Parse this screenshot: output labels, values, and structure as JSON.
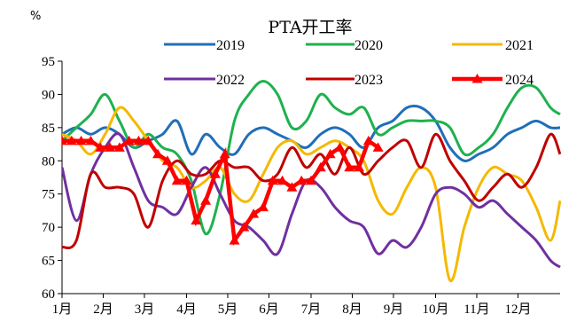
{
  "chart_data": {
    "type": "line",
    "title": "PTA开工率",
    "ylabel": "%",
    "xlabel": "",
    "ylim": [
      60,
      95
    ],
    "yticks": [
      60,
      65,
      70,
      75,
      80,
      85,
      90,
      95
    ],
    "x_range": [
      0,
      52
    ],
    "x_tick_labels": [
      "1月",
      "2月",
      "3月",
      "4月",
      "5月",
      "6月",
      "7月",
      "8月",
      "9月",
      "10月",
      "11月",
      "12月"
    ],
    "x_tick_positions": [
      0,
      4.3,
      8.6,
      13,
      17.3,
      21.6,
      26,
      30.3,
      34.6,
      39,
      43.3,
      47.6
    ],
    "legend": "top",
    "grid": false,
    "series": [
      {
        "name": "2019",
        "color": "#1f6fb8",
        "marker": false,
        "values": [
          [
            0,
            84
          ],
          [
            1.5,
            85
          ],
          [
            3,
            84
          ],
          [
            4.5,
            85
          ],
          [
            6,
            84
          ],
          [
            7.5,
            82
          ],
          [
            9,
            83
          ],
          [
            10.5,
            84
          ],
          [
            12,
            86
          ],
          [
            13.5,
            81
          ],
          [
            15,
            84
          ],
          [
            16.5,
            82
          ],
          [
            18,
            81
          ],
          [
            19.5,
            84
          ],
          [
            21,
            85
          ],
          [
            22.5,
            84
          ],
          [
            24,
            83
          ],
          [
            25.5,
            82
          ],
          [
            27,
            84
          ],
          [
            28.5,
            85
          ],
          [
            30,
            84
          ],
          [
            31.5,
            82
          ],
          [
            33,
            85
          ],
          [
            34.5,
            86
          ],
          [
            36,
            88
          ],
          [
            37.5,
            88
          ],
          [
            39,
            86
          ],
          [
            40.5,
            82
          ],
          [
            42,
            80
          ],
          [
            43.5,
            81
          ],
          [
            45,
            82
          ],
          [
            46.5,
            84
          ],
          [
            48,
            85
          ],
          [
            49.5,
            86
          ],
          [
            51,
            85
          ],
          [
            52,
            85
          ]
        ]
      },
      {
        "name": "2020",
        "color": "#1fb14f",
        "marker": false,
        "values": [
          [
            0,
            83
          ],
          [
            1.5,
            85
          ],
          [
            3,
            87
          ],
          [
            4.5,
            90
          ],
          [
            6,
            86
          ],
          [
            7.5,
            82
          ],
          [
            9,
            84
          ],
          [
            10.5,
            82
          ],
          [
            12,
            81
          ],
          [
            13.5,
            77
          ],
          [
            15,
            69
          ],
          [
            16.5,
            75
          ],
          [
            18,
            86
          ],
          [
            19.5,
            90
          ],
          [
            21,
            92
          ],
          [
            22.5,
            90
          ],
          [
            24,
            85
          ],
          [
            25.5,
            86
          ],
          [
            27,
            90
          ],
          [
            28.5,
            88
          ],
          [
            30,
            87
          ],
          [
            31.5,
            88
          ],
          [
            33,
            84
          ],
          [
            34.5,
            85
          ],
          [
            36,
            86
          ],
          [
            37.5,
            86
          ],
          [
            39,
            86
          ],
          [
            40.5,
            85
          ],
          [
            42,
            81
          ],
          [
            43.5,
            82
          ],
          [
            45,
            84
          ],
          [
            46.5,
            88
          ],
          [
            48,
            91
          ],
          [
            49.5,
            91
          ],
          [
            51,
            88
          ],
          [
            52,
            87
          ]
        ]
      },
      {
        "name": "2021",
        "color": "#f5b800",
        "marker": false,
        "values": [
          [
            0,
            84
          ],
          [
            1.5,
            83
          ],
          [
            3,
            81
          ],
          [
            4.5,
            84
          ],
          [
            6,
            88
          ],
          [
            7.5,
            86
          ],
          [
            9,
            83
          ],
          [
            10.5,
            80
          ],
          [
            12,
            79
          ],
          [
            13.5,
            76
          ],
          [
            15,
            77
          ],
          [
            16.5,
            79
          ],
          [
            18,
            75
          ],
          [
            19.5,
            74
          ],
          [
            21,
            78
          ],
          [
            22.5,
            82
          ],
          [
            24,
            83
          ],
          [
            25.5,
            81
          ],
          [
            27,
            82
          ],
          [
            28.5,
            83
          ],
          [
            30,
            82
          ],
          [
            31.5,
            80
          ],
          [
            33,
            74
          ],
          [
            34.5,
            72
          ],
          [
            36,
            76
          ],
          [
            37.5,
            79
          ],
          [
            39,
            76
          ],
          [
            40.5,
            62
          ],
          [
            42,
            70
          ],
          [
            43.5,
            76
          ],
          [
            45,
            79
          ],
          [
            46.5,
            78
          ],
          [
            48,
            77
          ],
          [
            49.5,
            73
          ],
          [
            51,
            68
          ],
          [
            52,
            74
          ]
        ]
      },
      {
        "name": "2022",
        "color": "#7030a0",
        "marker": false,
        "values": [
          [
            0,
            79
          ],
          [
            1.5,
            71
          ],
          [
            3,
            78
          ],
          [
            4.5,
            82
          ],
          [
            6,
            84
          ],
          [
            7.5,
            79
          ],
          [
            9,
            74
          ],
          [
            10.5,
            73
          ],
          [
            12,
            72
          ],
          [
            13.5,
            76
          ],
          [
            15,
            79
          ],
          [
            16.5,
            75
          ],
          [
            18,
            71
          ],
          [
            19.5,
            70
          ],
          [
            21,
            68
          ],
          [
            22.5,
            66
          ],
          [
            24,
            72
          ],
          [
            25.5,
            77
          ],
          [
            27,
            76
          ],
          [
            28.5,
            73
          ],
          [
            30,
            71
          ],
          [
            31.5,
            70
          ],
          [
            33,
            66
          ],
          [
            34.5,
            68
          ],
          [
            36,
            67
          ],
          [
            37.5,
            70
          ],
          [
            39,
            75
          ],
          [
            40.5,
            76
          ],
          [
            42,
            75
          ],
          [
            43.5,
            73
          ],
          [
            45,
            74
          ],
          [
            46.5,
            72
          ],
          [
            48,
            70
          ],
          [
            49.5,
            68
          ],
          [
            51,
            65
          ],
          [
            52,
            64
          ]
        ]
      },
      {
        "name": "2023",
        "color": "#c00000",
        "marker": false,
        "values": [
          [
            0,
            67
          ],
          [
            1.5,
            68
          ],
          [
            3,
            78
          ],
          [
            4.5,
            76
          ],
          [
            6,
            76
          ],
          [
            7.5,
            75
          ],
          [
            9,
            70
          ],
          [
            10.5,
            77
          ],
          [
            12,
            80
          ],
          [
            13.5,
            78
          ],
          [
            15,
            78
          ],
          [
            16.5,
            80
          ],
          [
            18,
            79
          ],
          [
            19.5,
            79
          ],
          [
            21,
            77
          ],
          [
            22.5,
            78
          ],
          [
            24,
            82
          ],
          [
            25.5,
            79
          ],
          [
            27,
            81
          ],
          [
            28.5,
            78
          ],
          [
            30,
            82
          ],
          [
            31.5,
            78
          ],
          [
            33,
            80
          ],
          [
            34.5,
            82
          ],
          [
            36,
            83
          ],
          [
            37.5,
            79
          ],
          [
            39,
            84
          ],
          [
            40.5,
            80
          ],
          [
            42,
            77
          ],
          [
            43.5,
            74
          ],
          [
            45,
            76
          ],
          [
            46.5,
            78
          ],
          [
            48,
            76
          ],
          [
            49.5,
            79
          ],
          [
            51,
            84
          ],
          [
            52,
            81
          ]
        ]
      },
      {
        "name": "2024",
        "color": "#ff0000",
        "marker": true,
        "values": [
          [
            0,
            83
          ],
          [
            1,
            83
          ],
          [
            2,
            83
          ],
          [
            3,
            83
          ],
          [
            4,
            82
          ],
          [
            5,
            82
          ],
          [
            6,
            82
          ],
          [
            7,
            83
          ],
          [
            8,
            83
          ],
          [
            9,
            83
          ],
          [
            10,
            81
          ],
          [
            11,
            80
          ],
          [
            12,
            77
          ],
          [
            13,
            77
          ],
          [
            14,
            71
          ],
          [
            15,
            74
          ],
          [
            16,
            78
          ],
          [
            17,
            81
          ],
          [
            18,
            68
          ],
          [
            19,
            70
          ],
          [
            20,
            72
          ],
          [
            21,
            73
          ],
          [
            22,
            77
          ],
          [
            23,
            77
          ],
          [
            24,
            76
          ],
          [
            25,
            77
          ],
          [
            26,
            77
          ],
          [
            27,
            79
          ],
          [
            28,
            81
          ],
          [
            29,
            82
          ],
          [
            30,
            79
          ],
          [
            31,
            79
          ],
          [
            32,
            83
          ],
          [
            33,
            82
          ]
        ]
      }
    ]
  }
}
